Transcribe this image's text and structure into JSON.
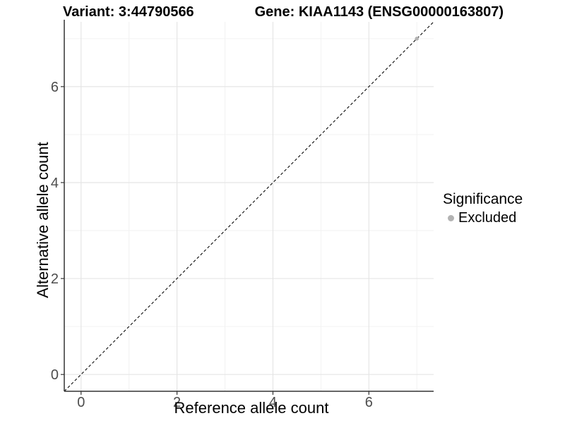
{
  "colors": {
    "background": "#ffffff",
    "axis_line": "#333333",
    "tick_mark": "#333333",
    "tick_label": "#4d4d4d",
    "grid_major": "#e5e5e5",
    "grid_minor": "#f2f2f2",
    "excluded_gray": "#b3b3b3",
    "identity_line": "#1a1a1a",
    "text": "#000000"
  },
  "chart_data": {
    "type": "scatter",
    "titles": {
      "left": "Variant: 3:44790566",
      "right": "Gene: KIAA1143 (ENSG00000163807)"
    },
    "xlabel": "Reference allele count",
    "ylabel": "Alternative allele count",
    "xlim": [
      -0.35,
      7.35
    ],
    "ylim": [
      -0.35,
      7.35
    ],
    "major_ticks": [
      0,
      2,
      4,
      6
    ],
    "minor_ticks": [
      1,
      3,
      5,
      7
    ],
    "grid": true,
    "identity_line": {
      "style": "dashed",
      "slope": 1,
      "intercept": 0,
      "color": "#1a1a1a"
    },
    "series": [
      {
        "name": "Excluded",
        "color": "#b3b3b3",
        "points": [
          {
            "x": 7,
            "y": 7
          }
        ]
      }
    ],
    "legend": {
      "title": "Significance",
      "position": "right",
      "items": [
        {
          "label": "Excluded",
          "color": "#b3b3b3"
        }
      ]
    }
  }
}
